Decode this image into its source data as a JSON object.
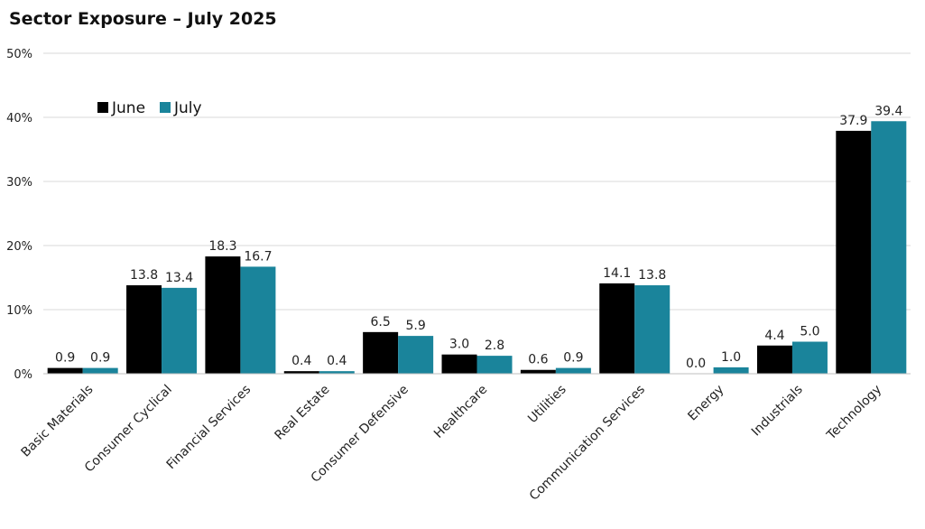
{
  "chart_data": {
    "type": "bar",
    "title": "Sector Exposure – July 2025",
    "categories": [
      "Basic Materials",
      "Consumer Cyclical",
      "Financial Services",
      "Real Estate",
      "Consumer Defensive",
      "Healthcare",
      "Utilities",
      "Communication Services",
      "Energy",
      "Industrials",
      "Technology"
    ],
    "series": [
      {
        "name": "June",
        "color": "#000000",
        "values": [
          0.9,
          13.8,
          18.3,
          0.4,
          6.5,
          3.0,
          0.6,
          14.1,
          0.0,
          4.4,
          37.9
        ],
        "labels": [
          "0.9",
          "13.8",
          "18.3",
          "0.4",
          "6.5",
          "3.0",
          "0.6",
          "14.1",
          "0.0",
          "4.4",
          "37.9"
        ]
      },
      {
        "name": "July",
        "color": "#1a849b",
        "values": [
          0.9,
          13.4,
          16.7,
          0.4,
          5.9,
          2.8,
          0.9,
          13.8,
          1.0,
          5.0,
          39.4
        ],
        "labels": [
          "0.9",
          "13.4",
          "16.7",
          "0.4",
          "5.9",
          "2.8",
          "0.9",
          "13.8",
          "1.0",
          "5.0",
          "39.4"
        ]
      }
    ],
    "yticks": [
      "0%",
      "10%",
      "20%",
      "30%",
      "40%",
      "50%"
    ],
    "ytick_values": [
      0,
      10,
      20,
      30,
      40,
      50
    ],
    "ylim": [
      0,
      50
    ],
    "grid": true,
    "legend_position": "top-left"
  }
}
